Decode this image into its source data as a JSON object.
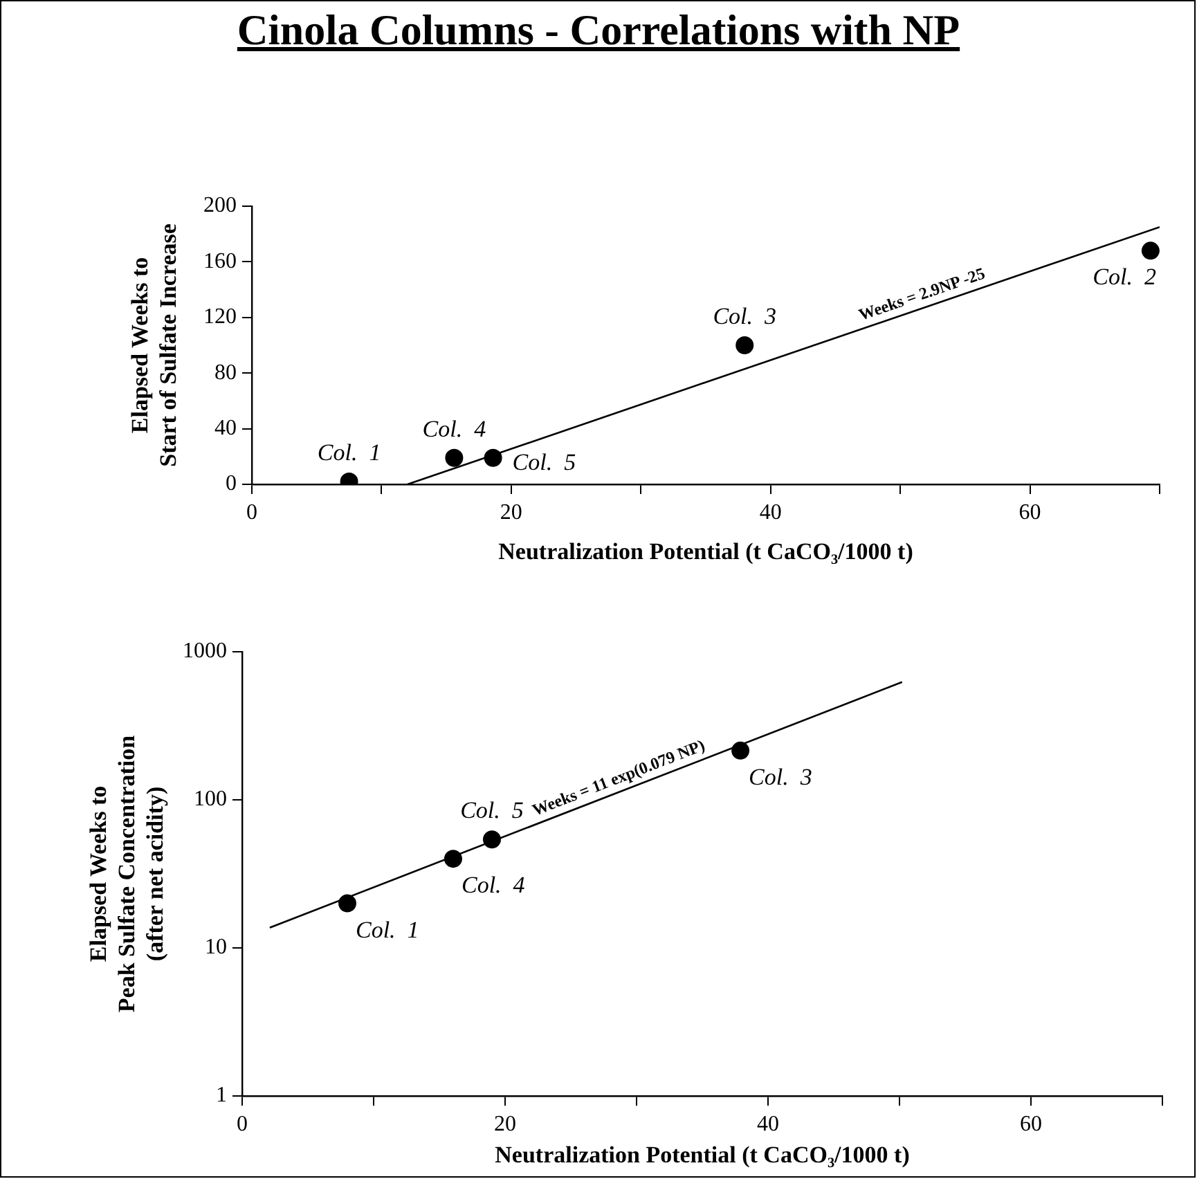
{
  "chart_data": [
    {
      "type": "scatter",
      "title": "Cinola Columns - Correlations with NP",
      "xlabel": "Neutralization Potential (t CaCO₃/1000 t)",
      "ylabel": "Elapsed Weeks to\nStart of Sulfate Increase",
      "xlim": [
        0,
        70
      ],
      "xticks": [
        0,
        {
          "value": 10,
          "label": null
        },
        20,
        {
          "value": 30,
          "label": null
        },
        40,
        {
          "value": 50,
          "label": null
        },
        60,
        {
          "value": 70,
          "label": null
        }
      ],
      "ylim": [
        0,
        200
      ],
      "yticks": [
        0,
        40,
        80,
        120,
        160,
        200
      ],
      "series": [
        {
          "color": "#000000",
          "marker": "circle",
          "x": [
            7.5,
            15.6,
            18.6,
            38,
            69.3
          ],
          "values": [
            2,
            19,
            19,
            100,
            168
          ]
        },
        {
          "type": "line",
          "color": "#000000",
          "x": [
            12,
            70
          ],
          "values": [
            0,
            185
          ]
        }
      ],
      "annotations": [
        {
          "text": "Col.  1",
          "x": 7.5,
          "y": 2
        },
        {
          "text": "Col.  4",
          "x": 15.6,
          "y": 19
        },
        {
          "text": "Col.  5",
          "x": 18.6,
          "y": 19
        },
        {
          "text": "Col.  3",
          "x": 38,
          "y": 100
        },
        {
          "text": "Col.  2",
          "x": 69.3,
          "y": 168
        },
        {
          "text": "Weeks = 2.9NP -25",
          "x": 52,
          "y": 127.6
        }
      ]
    },
    {
      "type": "scatter",
      "xlabel": "Neutralization Potential (t CaCO₃/1000 t)",
      "ylabel": "Elapsed Weeks to\nPeak Sulfate Concentration\n(after net acidity)",
      "xlim": [
        0,
        70
      ],
      "xticks": [
        0,
        {
          "value": 10,
          "label": null
        },
        20,
        {
          "value": 30,
          "label": null
        },
        40,
        {
          "value": 50,
          "label": null
        },
        60,
        {
          "value": 70,
          "label": null
        }
      ],
      "ylim": [
        1,
        1000
      ],
      "yticks": [
        1,
        10,
        100,
        1000
      ],
      "log": "y",
      "series": [
        {
          "color": "#000000",
          "marker": "circle",
          "x": [
            8,
            16.05,
            19,
            37.9
          ],
          "values": [
            20,
            40,
            54,
            215
          ]
        },
        {
          "type": "line",
          "color": "#000000",
          "x": [
            2.1,
            50.2
          ],
          "values": [
            13.7,
            624
          ]
        }
      ],
      "annotations": [
        {
          "text": "Col.  1",
          "x": 8,
          "y": 20
        },
        {
          "text": "Col.  4",
          "x": 16.05,
          "y": 40
        },
        {
          "text": "Col.  5",
          "x": 19,
          "y": 54
        },
        {
          "text": "Col.  3",
          "x": 37.9,
          "y": 215
        },
        {
          "text": "Weeks = 11 exp(0.079 NP)",
          "x": 29,
          "y": 116
        }
      ]
    }
  ]
}
